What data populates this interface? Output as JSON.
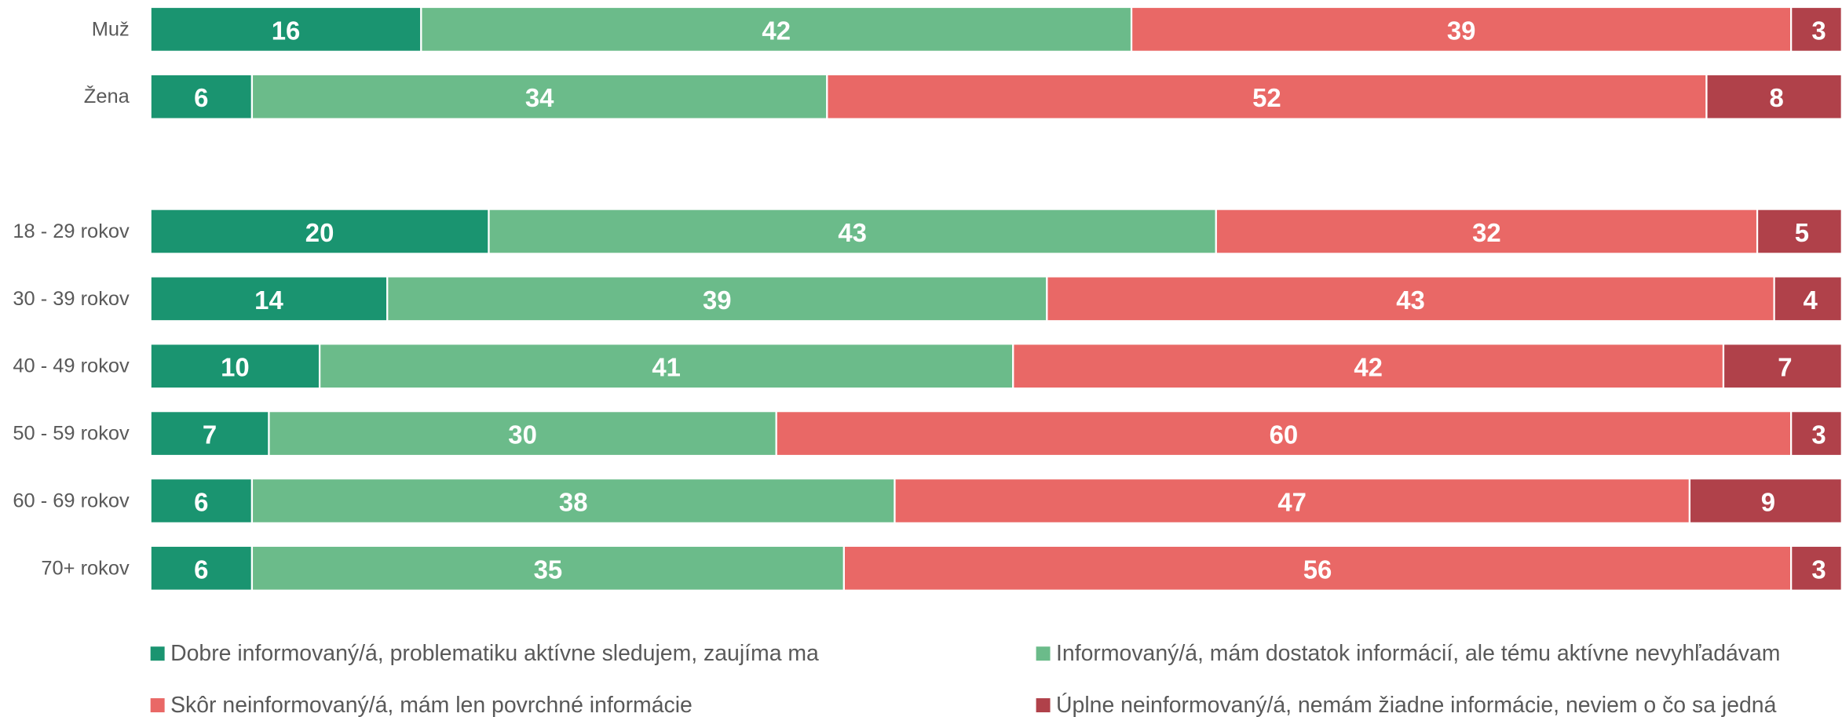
{
  "chart_data": {
    "type": "bar",
    "orientation": "horizontal",
    "stacked": true,
    "categories": [
      "Muž",
      "Žena",
      null,
      "18 - 29 rokov",
      "30 - 39 rokov",
      "40 - 49 rokov",
      "50 - 59 rokov",
      "60 - 69 rokov",
      "70+ rokov"
    ],
    "xlim": [
      0,
      100
    ],
    "legend": "bottom",
    "series": [
      {
        "name": "Dobre informovaný/á, problematiku aktívne sledujem, zaujíma ma",
        "color": "#1a9470",
        "values": [
          16,
          6,
          null,
          20,
          14,
          10,
          7,
          6,
          6
        ]
      },
      {
        "name": "Informovaný/á, mám dostatok informácií, ale tému aktívne nevyhľadávam",
        "color": "#6bbb8a",
        "values": [
          42,
          34,
          null,
          43,
          39,
          41,
          30,
          38,
          35
        ]
      },
      {
        "name": "Skôr neinformovaný/á, mám len povrchné informácie",
        "color": "#e96866",
        "values": [
          39,
          52,
          null,
          32,
          43,
          42,
          60,
          47,
          56
        ]
      },
      {
        "name": "Úplne neinformovaný/á, nemám žiadne informácie, neviem o čo sa jedná",
        "color": "#b0414a",
        "values": [
          3,
          8,
          null,
          5,
          4,
          7,
          3,
          9,
          3
        ]
      }
    ]
  }
}
